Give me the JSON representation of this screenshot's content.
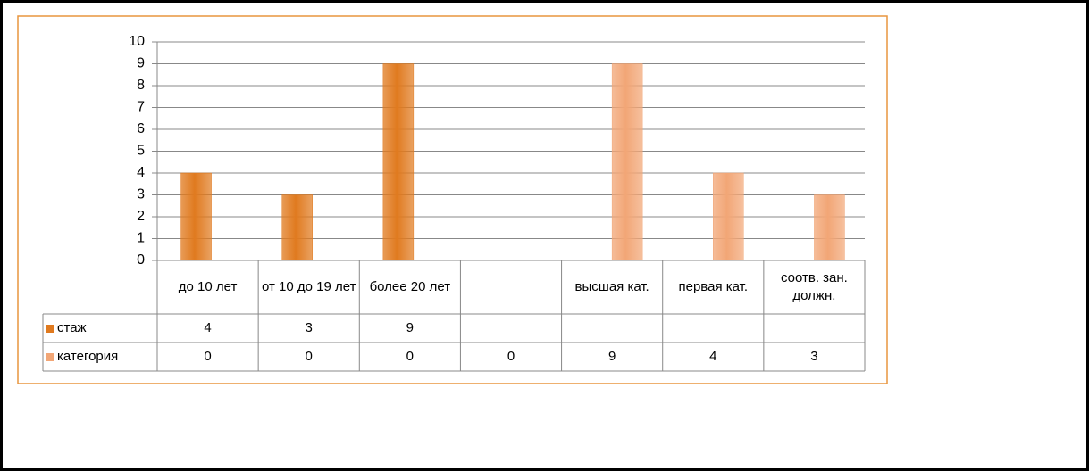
{
  "chart_data": {
    "type": "bar",
    "categories": [
      "до 10 лет",
      "от 10 до 19 лет",
      "более 20 лет",
      null,
      "высшая кат.",
      "первая кат.",
      "соотв. зан. должн."
    ],
    "series": [
      {
        "name": "стаж",
        "color": "#e07a1f",
        "values": [
          4,
          3,
          9,
          null,
          null,
          null,
          null
        ]
      },
      {
        "name": "категория",
        "color": "#f2a676",
        "values": [
          0,
          0,
          0,
          0,
          9,
          4,
          3
        ]
      }
    ],
    "ylim": [
      0,
      10
    ],
    "yticks": [
      0,
      1,
      2,
      3,
      4,
      5,
      6,
      7,
      8,
      9,
      10
    ],
    "grid": true,
    "data_table": true
  }
}
